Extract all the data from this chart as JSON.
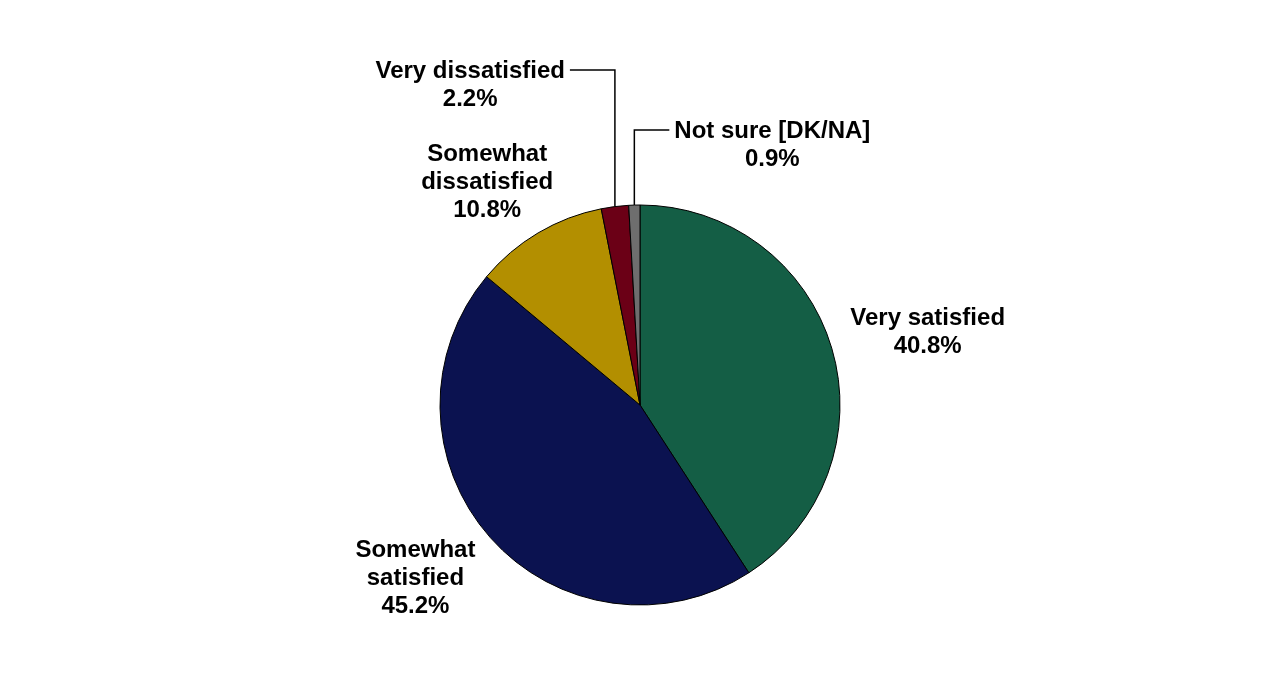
{
  "chart_data": {
    "type": "pie",
    "categories": [
      "Very satisfied",
      "Somewhat satisfied",
      "Somewhat dissatisfied",
      "Very dissatisfied",
      "Not sure [DK/NA]"
    ],
    "values": [
      40.8,
      45.2,
      10.8,
      2.2,
      0.9
    ],
    "value_labels": [
      "40.8%",
      "45.2%",
      "10.8%",
      "2.2%",
      "0.9%"
    ],
    "colors": [
      "#145e45",
      "#0b1250",
      "#b38f00",
      "#6b0016",
      "#6e6e6e"
    ]
  }
}
